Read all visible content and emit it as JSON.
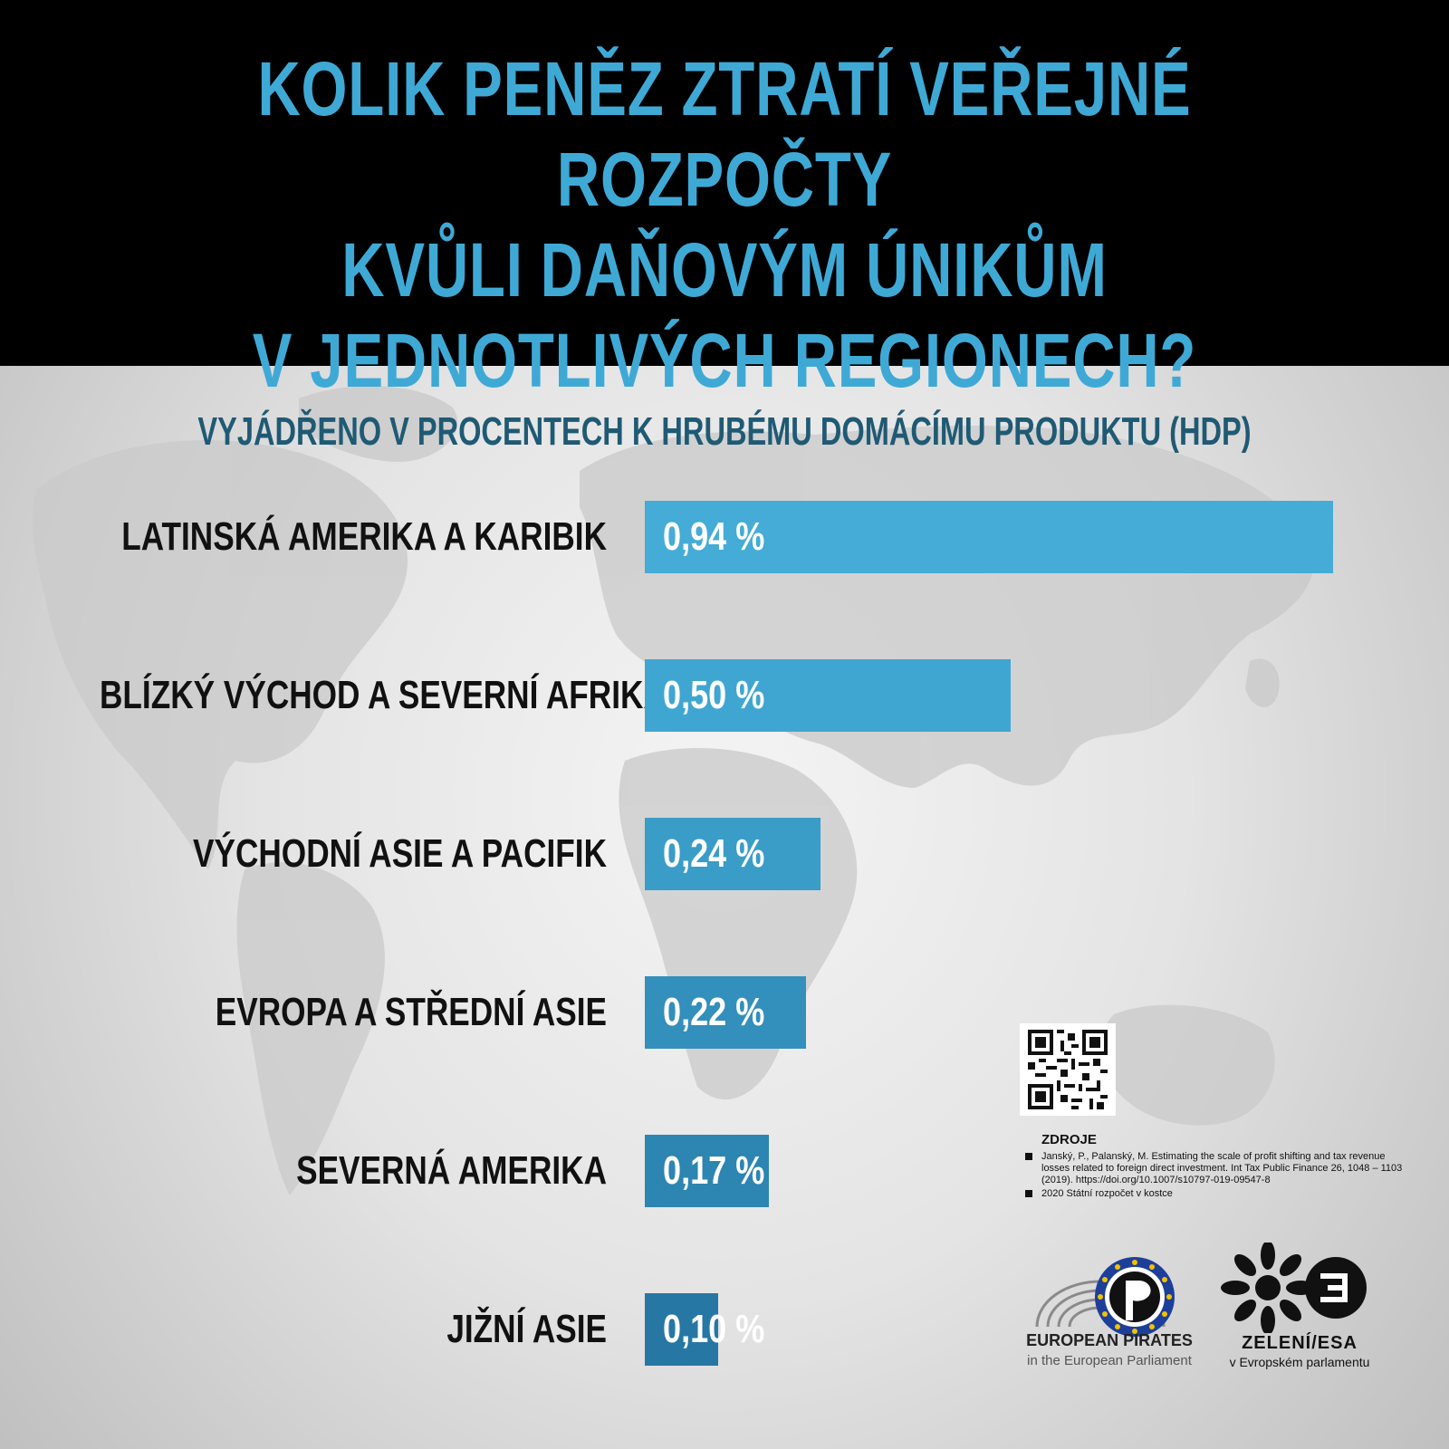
{
  "header": {
    "title_lines": [
      "KOLIK PENĚZ ZTRATÍ VEŘEJNÉ ROZPOČTY",
      "KVŮLI DAŇOVÝM ÚNIKŮM",
      "V JEDNOTLIVÝCH REGIONECH?"
    ]
  },
  "subtitle": "VYJÁDŘENO V PROCENTECH K HRUBÉMU DOMÁCÍMU PRODUKTU (HDP)",
  "chart_data": {
    "type": "bar",
    "orientation": "horizontal",
    "categories": [
      "LATINSKÁ AMERIKA A KARIBIK",
      "BLÍZKÝ VÝCHOD A SEVERNÍ AFRIKA",
      "VÝCHODNÍ ASIE A PACIFIK",
      "EVROPA A STŘEDNÍ ASIE",
      "SEVERNÁ AMERIKA",
      "JIŽNÍ ASIE"
    ],
    "values": [
      0.94,
      0.5,
      0.24,
      0.22,
      0.17,
      0.1
    ],
    "value_labels": [
      "0,94 %",
      "0,50 %",
      "0,24 %",
      "0,22 %",
      "0,17 %",
      "0,10 %"
    ],
    "grid": false,
    "colors": [
      "#44acd6",
      "#3fa6d2",
      "#399dc8",
      "#338fbb",
      "#2d85b1",
      "#2677a4"
    ]
  },
  "sources": {
    "heading": "ZDROJE",
    "items": [
      "Janský, P., Palanský, M. Estimating the scale of profit shifting and tax revenue losses related to foreign direct investment. Int Tax Public Finance 26, 1048 – 1103 (2019). https://doi.org/10.1007/s10797-019-09547-8",
      "2020 Státní rozpočet v kostce"
    ]
  },
  "logos": {
    "pirates_name": "EUROPEAN PIRATES",
    "pirates_sub": "in the European Parliament",
    "greens_name": "ZELENÍ/ESA",
    "greens_sub": "v Evropském parlamentu"
  }
}
